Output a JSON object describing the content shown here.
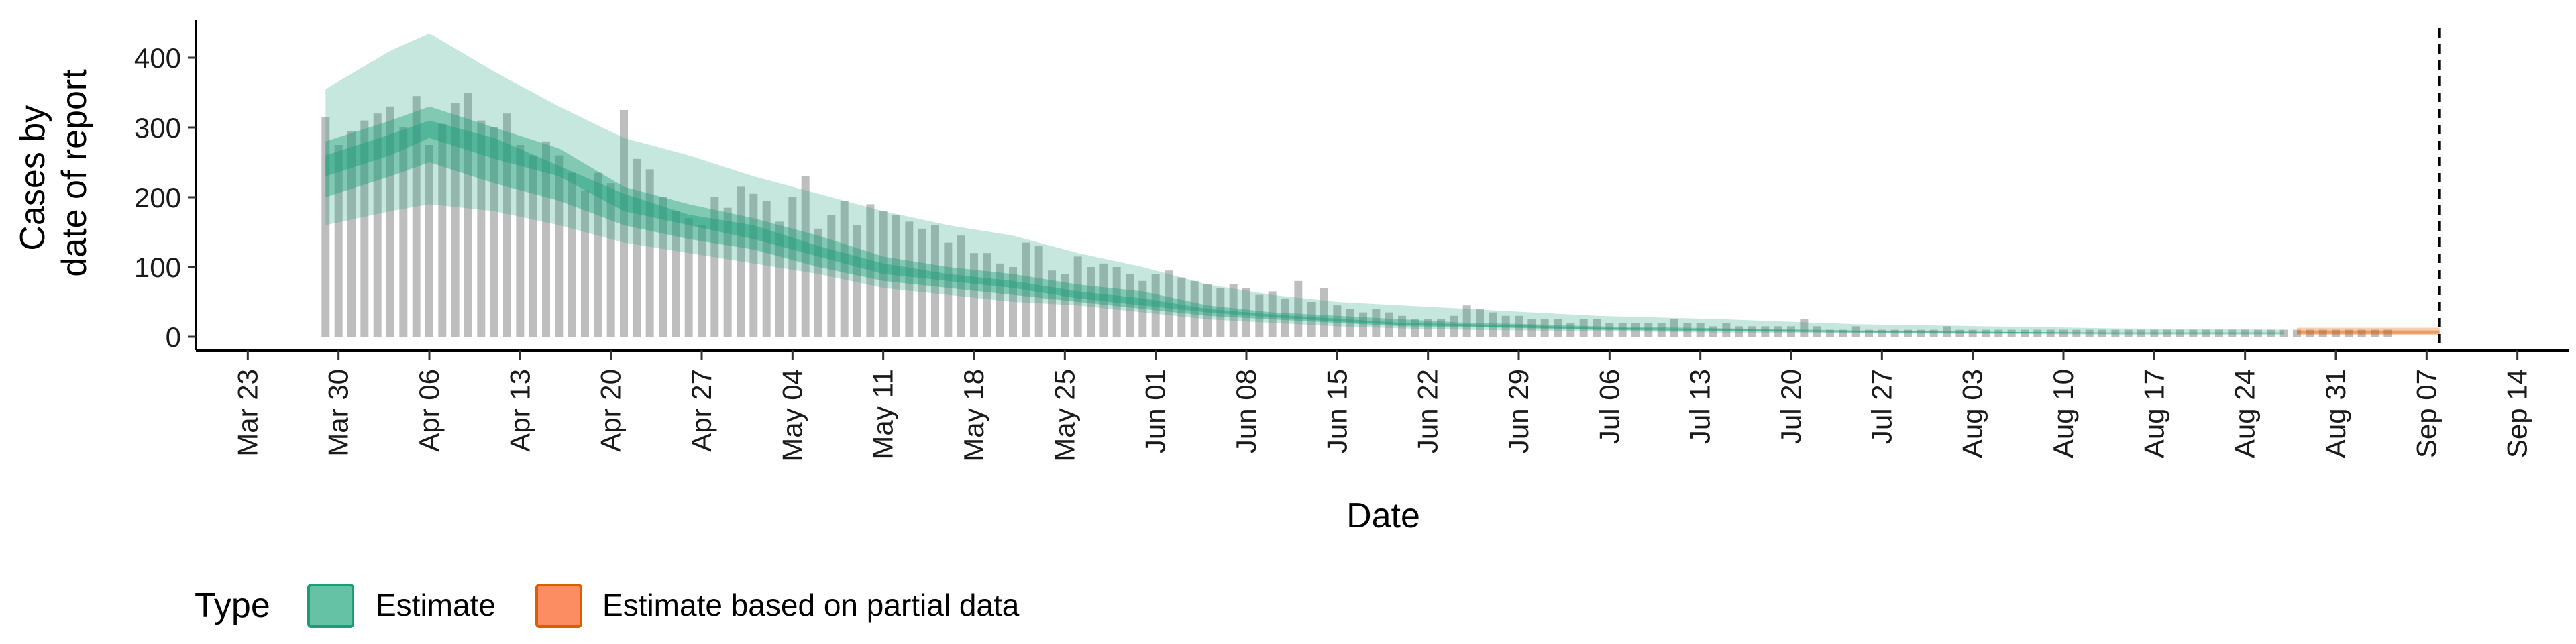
{
  "chart_data": {
    "type": "bar",
    "xlabel": "Date",
    "ylabel_lines": [
      "Cases by",
      "date of report"
    ],
    "ylim": [
      0,
      450
    ],
    "y_ticks": [
      0,
      100,
      200,
      300,
      400
    ],
    "x_range": [
      "2020-03-19",
      "2020-09-18"
    ],
    "x_ticks": [
      {
        "date": "2020-03-23",
        "label": "Mar 23"
      },
      {
        "date": "2020-03-30",
        "label": "Mar 30"
      },
      {
        "date": "2020-04-06",
        "label": "Apr 06"
      },
      {
        "date": "2020-04-13",
        "label": "Apr 13"
      },
      {
        "date": "2020-04-20",
        "label": "Apr 20"
      },
      {
        "date": "2020-04-27",
        "label": "Apr 27"
      },
      {
        "date": "2020-05-04",
        "label": "May 04"
      },
      {
        "date": "2020-05-11",
        "label": "May 11"
      },
      {
        "date": "2020-05-18",
        "label": "May 18"
      },
      {
        "date": "2020-05-25",
        "label": "May 25"
      },
      {
        "date": "2020-06-01",
        "label": "Jun 01"
      },
      {
        "date": "2020-06-08",
        "label": "Jun 08"
      },
      {
        "date": "2020-06-15",
        "label": "Jun 15"
      },
      {
        "date": "2020-06-22",
        "label": "Jun 22"
      },
      {
        "date": "2020-06-29",
        "label": "Jun 29"
      },
      {
        "date": "2020-07-06",
        "label": "Jul 06"
      },
      {
        "date": "2020-07-13",
        "label": "Jul 13"
      },
      {
        "date": "2020-07-20",
        "label": "Jul 20"
      },
      {
        "date": "2020-07-27",
        "label": "Jul 27"
      },
      {
        "date": "2020-08-03",
        "label": "Aug 03"
      },
      {
        "date": "2020-08-10",
        "label": "Aug 10"
      },
      {
        "date": "2020-08-17",
        "label": "Aug 17"
      },
      {
        "date": "2020-08-24",
        "label": "Aug 24"
      },
      {
        "date": "2020-08-31",
        "label": "Aug 31"
      },
      {
        "date": "2020-09-07",
        "label": "Sep 07"
      },
      {
        "date": "2020-09-14",
        "label": "Sep 14"
      }
    ],
    "reported_cases_start": "2020-03-29",
    "reported_cases": [
      315,
      275,
      295,
      310,
      320,
      330,
      300,
      345,
      275,
      305,
      335,
      350,
      310,
      300,
      320,
      275,
      260,
      280,
      260,
      235,
      210,
      235,
      220,
      325,
      255,
      240,
      200,
      180,
      170,
      160,
      200,
      185,
      215,
      205,
      195,
      165,
      200,
      230,
      155,
      175,
      195,
      160,
      190,
      180,
      175,
      165,
      155,
      160,
      135,
      145,
      120,
      120,
      105,
      100,
      135,
      130,
      95,
      90,
      115,
      100,
      105,
      100,
      90,
      80,
      90,
      95,
      85,
      80,
      75,
      70,
      75,
      70,
      60,
      65,
      55,
      80,
      50,
      70,
      45,
      40,
      35,
      40,
      35,
      30,
      25,
      25,
      25,
      30,
      45,
      40,
      35,
      30,
      30,
      25,
      25,
      25,
      20,
      25,
      25,
      20,
      20,
      20,
      20,
      20,
      25,
      20,
      20,
      15,
      20,
      15,
      15,
      15,
      15,
      15,
      25,
      15,
      10,
      10,
      15,
      10,
      10,
      10,
      10,
      10,
      10,
      15,
      10,
      10,
      10,
      10,
      10,
      10,
      10,
      10,
      10,
      10,
      10,
      10,
      10,
      10,
      10,
      10,
      10,
      10,
      10,
      10,
      10,
      10,
      10,
      10,
      10,
      10,
      10,
      10,
      10,
      10,
      10,
      10,
      10,
      10
    ],
    "estimate_bands": {
      "dates": [
        "2020-03-29",
        "2020-04-03",
        "2020-04-06",
        "2020-04-11",
        "2020-04-16",
        "2020-04-21",
        "2020-04-26",
        "2020-05-01",
        "2020-05-06",
        "2020-05-11",
        "2020-05-16",
        "2020-05-21",
        "2020-05-26",
        "2020-05-31",
        "2020-06-05",
        "2020-06-10",
        "2020-06-15",
        "2020-06-20",
        "2020-06-25",
        "2020-06-30",
        "2020-07-05",
        "2020-07-15",
        "2020-07-25",
        "2020-08-04",
        "2020-08-14",
        "2020-08-27"
      ],
      "outer_low": [
        160,
        180,
        190,
        180,
        160,
        135,
        120,
        105,
        90,
        70,
        60,
        50,
        45,
        35,
        25,
        20,
        15,
        12,
        10,
        9,
        8,
        6,
        5,
        4,
        3,
        3
      ],
      "outer_high": [
        355,
        410,
        435,
        380,
        330,
        285,
        260,
        230,
        205,
        180,
        160,
        145,
        120,
        100,
        75,
        60,
        50,
        45,
        40,
        35,
        30,
        25,
        18,
        15,
        12,
        10
      ],
      "mid_low": [
        200,
        230,
        250,
        220,
        195,
        160,
        140,
        125,
        100,
        80,
        70,
        60,
        50,
        40,
        30,
        25,
        20,
        15,
        14,
        12,
        10,
        8,
        6,
        5,
        4,
        4
      ],
      "mid_high": [
        280,
        310,
        330,
        300,
        270,
        215,
        190,
        170,
        145,
        115,
        100,
        90,
        75,
        65,
        45,
        35,
        30,
        25,
        20,
        18,
        15,
        12,
        9,
        7,
        6,
        6
      ],
      "inner_low": [
        230,
        260,
        285,
        255,
        230,
        180,
        160,
        140,
        115,
        90,
        80,
        70,
        55,
        45,
        35,
        28,
        22,
        17,
        15,
        13,
        11,
        9,
        7,
        6,
        5,
        5
      ],
      "inner_high": [
        260,
        290,
        310,
        285,
        245,
        205,
        175,
        160,
        130,
        105,
        90,
        80,
        65,
        55,
        40,
        32,
        26,
        20,
        18,
        16,
        13,
        11,
        8,
        7,
        6,
        6
      ]
    },
    "partial_bands": {
      "dates": [
        "2020-08-28",
        "2020-09-08"
      ],
      "outer_low": [
        2,
        2
      ],
      "outer_high": [
        13,
        13
      ],
      "inner_low": [
        4,
        4
      ],
      "inner_high": [
        9,
        9
      ]
    },
    "vline_date": "2020-09-08",
    "legend": {
      "title": "Type",
      "position": "bottom-left",
      "entries": [
        {
          "label": "Estimate",
          "fill": "#66c2a5",
          "stroke": "#1b9e77"
        },
        {
          "label": "Estimate based on partial data",
          "fill": "#fc8d62",
          "stroke": "#d95f02"
        }
      ]
    },
    "colors": {
      "bars": "#b3b3b3",
      "estimate": "#1b9e77",
      "partial": "#d95f02"
    }
  }
}
